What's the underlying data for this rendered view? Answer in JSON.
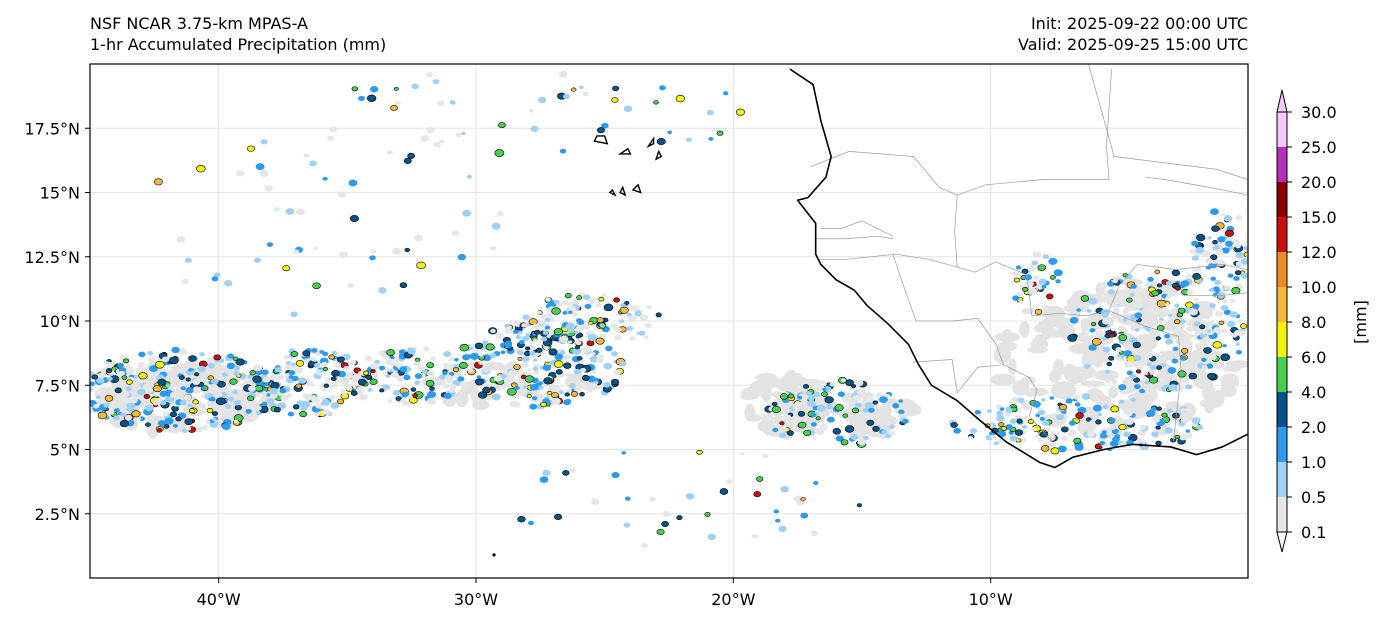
{
  "header": {
    "model": "NSF NCAR 3.75-km MPAS-A",
    "field": "1-hr Accumulated Precipitation (mm)",
    "init": "Init: 2025-09-22 00:00 UTC",
    "valid": "Valid: 2025-09-25 15:00 UTC"
  },
  "map": {
    "extent": {
      "lon_min": -45,
      "lon_max": 0,
      "lat_min": 0,
      "lat_max": 20
    },
    "lat_ticks": [
      {
        "value": 2.5,
        "label": "2.5°N"
      },
      {
        "value": 5,
        "label": "5°N"
      },
      {
        "value": 7.5,
        "label": "7.5°N"
      },
      {
        "value": 10,
        "label": "10°N"
      },
      {
        "value": 12.5,
        "label": "12.5°N"
      },
      {
        "value": 15,
        "label": "15°N"
      },
      {
        "value": 17.5,
        "label": "17.5°N"
      }
    ],
    "lon_ticks": [
      {
        "value": -40,
        "label": "40°W"
      },
      {
        "value": -30,
        "label": "30°W"
      },
      {
        "value": -20,
        "label": "20°W"
      },
      {
        "value": -10,
        "label": "10°W"
      }
    ],
    "colors": {
      "coast": "#000000",
      "border": "#9a9a9a",
      "grid": "#e4e4e4",
      "light_precip": "#e3e3e3"
    },
    "coastline": [
      [
        -17.8,
        19.8
      ],
      [
        -16.9,
        19.2
      ],
      [
        -16.6,
        17.8
      ],
      [
        -16.2,
        16.4
      ],
      [
        -16.4,
        15.6
      ],
      [
        -17.1,
        14.8
      ],
      [
        -17.5,
        14.7
      ],
      [
        -16.8,
        13.8
      ],
      [
        -16.8,
        12.6
      ],
      [
        -16.6,
        12.2
      ],
      [
        -16.0,
        11.6
      ],
      [
        -15.3,
        11.2
      ],
      [
        -14.8,
        10.6
      ],
      [
        -14.0,
        9.9
      ],
      [
        -13.2,
        9.1
      ],
      [
        -12.8,
        8.3
      ],
      [
        -12.3,
        7.5
      ],
      [
        -11.3,
        6.9
      ],
      [
        -10.5,
        6.2
      ],
      [
        -9.4,
        5.3
      ],
      [
        -8.1,
        4.5
      ],
      [
        -7.5,
        4.3
      ],
      [
        -6.8,
        4.7
      ],
      [
        -5.6,
        5.0
      ],
      [
        -4.5,
        5.2
      ],
      [
        -3.0,
        5.1
      ],
      [
        -2.0,
        4.8
      ],
      [
        -1.0,
        5.1
      ],
      [
        0.0,
        5.6
      ]
    ],
    "borders": [
      [
        [
          -17.0,
          16.0
        ],
        [
          -15.5,
          16.6
        ],
        [
          -13.0,
          16.4
        ],
        [
          -12.0,
          15.2
        ],
        [
          -11.3,
          14.9
        ]
      ],
      [
        [
          -16.7,
          12.4
        ],
        [
          -15.6,
          12.4
        ],
        [
          -13.7,
          12.6
        ],
        [
          -12.4,
          12.4
        ],
        [
          -11.3,
          12.1
        ]
      ],
      [
        [
          -16.6,
          13.6
        ],
        [
          -15.8,
          13.6
        ],
        [
          -15.0,
          13.9
        ],
        [
          -14.2,
          13.5
        ],
        [
          -13.8,
          13.3
        ]
      ],
      [
        [
          -16.8,
          13.2
        ],
        [
          -15.6,
          13.2
        ],
        [
          -14.4,
          13.3
        ],
        [
          -13.8,
          13.2
        ]
      ],
      [
        [
          -11.3,
          14.9
        ],
        [
          -11.4,
          13.5
        ],
        [
          -11.3,
          12.1
        ],
        [
          -10.6,
          11.9
        ],
        [
          -9.8,
          12.3
        ],
        [
          -8.6,
          11.8
        ],
        [
          -8.4,
          10.2
        ]
      ],
      [
        [
          -13.8,
          12.6
        ],
        [
          -13.4,
          11.4
        ],
        [
          -12.9,
          10.0
        ],
        [
          -11.5,
          10.0
        ],
        [
          -10.5,
          10.1
        ],
        [
          -9.8,
          9.1
        ],
        [
          -9.5,
          8.3
        ]
      ],
      [
        [
          -13.0,
          8.4
        ],
        [
          -11.5,
          8.5
        ],
        [
          -11.3,
          7.2
        ]
      ],
      [
        [
          -11.3,
          7.2
        ],
        [
          -10.5,
          8.2
        ],
        [
          -9.5,
          8.3
        ],
        [
          -8.5,
          7.8
        ],
        [
          -8.2,
          7.3
        ],
        [
          -8.5,
          6.3
        ],
        [
          -7.6,
          5.3
        ]
      ],
      [
        [
          -8.4,
          10.2
        ],
        [
          -7.3,
          10.3
        ],
        [
          -6.3,
          10.2
        ],
        [
          -5.4,
          10.4
        ],
        [
          -5.0,
          11.4
        ],
        [
          -4.3,
          12.2
        ],
        [
          -2.8,
          12.0
        ],
        [
          -1.0,
          12.2
        ],
        [
          0.0,
          12.0
        ]
      ],
      [
        [
          -5.4,
          10.4
        ],
        [
          -4.0,
          9.8
        ],
        [
          -2.7,
          9.4
        ],
        [
          -2.6,
          8.0
        ],
        [
          -2.9,
          5.3
        ]
      ],
      [
        [
          -2.5,
          11.0
        ],
        [
          -1.0,
          11.0
        ],
        [
          0.0,
          11.1
        ]
      ],
      [
        [
          0.0,
          14.9
        ],
        [
          -1.5,
          15.2
        ],
        [
          -3.2,
          15.5
        ],
        [
          -4.0,
          15.6
        ]
      ],
      [
        [
          -11.3,
          14.9
        ],
        [
          -10.2,
          15.3
        ],
        [
          -8.0,
          15.5
        ],
        [
          -5.4,
          15.5
        ],
        [
          -5.5,
          16.8
        ],
        [
          -5.3,
          19.8
        ]
      ],
      [
        [
          -6.2,
          20.0
        ],
        [
          -5.2,
          16.4
        ],
        [
          -1.2,
          15.9
        ],
        [
          0.0,
          15.5
        ]
      ]
    ],
    "islands": [
      [
        [
          -25.4,
          17.0
        ],
        [
          -24.9,
          16.9
        ],
        [
          -25.0,
          17.2
        ],
        [
          -25.3,
          17.2
        ],
        [
          -25.4,
          17.0
        ]
      ],
      [
        [
          -24.4,
          16.5
        ],
        [
          -24.0,
          16.5
        ],
        [
          -24.1,
          16.7
        ],
        [
          -24.4,
          16.5
        ]
      ],
      [
        [
          -23.0,
          16.3
        ],
        [
          -22.8,
          16.4
        ],
        [
          -22.9,
          16.6
        ],
        [
          -23.0,
          16.3
        ]
      ],
      [
        [
          -23.9,
          15.1
        ],
        [
          -23.6,
          15.0
        ],
        [
          -23.7,
          15.3
        ],
        [
          -23.9,
          15.1
        ]
      ],
      [
        [
          -24.8,
          15.0
        ],
        [
          -24.6,
          14.9
        ],
        [
          -24.7,
          15.1
        ],
        [
          -24.8,
          15.0
        ]
      ],
      [
        [
          -24.4,
          15.0
        ],
        [
          -24.2,
          14.9
        ],
        [
          -24.3,
          15.2
        ],
        [
          -24.4,
          15.0
        ]
      ],
      [
        [
          -23.3,
          16.8
        ],
        [
          -23.1,
          16.9
        ],
        [
          -23.1,
          17.1
        ],
        [
          -23.3,
          16.8
        ]
      ]
    ],
    "extra_island_points": [
      [
        -29.3,
        0.9
      ]
    ],
    "precip_regions": [
      {
        "lon": -41.5,
        "lat": 7.3,
        "rlon": 3.9,
        "rlat": 1.6,
        "n": 320,
        "seed": 11
      },
      {
        "lon": -36.5,
        "lat": 7.6,
        "rlon": 2.4,
        "rlat": 1.3,
        "n": 150,
        "seed": 12
      },
      {
        "lon": -32.5,
        "lat": 7.9,
        "rlon": 2.0,
        "rlat": 1.2,
        "n": 110,
        "seed": 13
      },
      {
        "lon": -27.5,
        "lat": 8.3,
        "rlon": 3.3,
        "rlat": 1.7,
        "n": 260,
        "seed": 14
      },
      {
        "lon": -25.5,
        "lat": 10.0,
        "rlon": 2.7,
        "rlat": 1.1,
        "n": 110,
        "seed": 15
      },
      {
        "lon": -16.0,
        "lat": 6.4,
        "rlon": 2.8,
        "rlat": 1.3,
        "n": 140,
        "seed": 16
      },
      {
        "lon": -6.5,
        "lat": 6.0,
        "rlon": 5.0,
        "rlat": 1.1,
        "n": 200,
        "seed": 17
      },
      {
        "lon": -3.5,
        "lat": 9.6,
        "rlon": 3.4,
        "rlat": 2.4,
        "n": 280,
        "seed": 18
      },
      {
        "lon": -1.0,
        "lat": 12.7,
        "rlon": 1.2,
        "rlat": 1.8,
        "n": 80,
        "seed": 19
      },
      {
        "lon": -8.2,
        "lat": 11.5,
        "rlon": 1.0,
        "rlat": 1.2,
        "n": 40,
        "seed": 20
      },
      {
        "lon": -28.0,
        "lat": 18.0,
        "rlon": 9.0,
        "rlat": 1.8,
        "n": 50,
        "seed": 21
      },
      {
        "lon": -36.0,
        "lat": 14.0,
        "rlon": 7.0,
        "rlat": 4.0,
        "n": 50,
        "seed": 22
      },
      {
        "lon": -22.0,
        "lat": 3.0,
        "rlon": 7.0,
        "rlat": 2.0,
        "n": 40,
        "seed": 23
      }
    ],
    "gray_patches": [
      {
        "lon": -41.5,
        "lat": 7.0,
        "rlon": 3.6,
        "rlat": 1.3,
        "n": 90,
        "seed": 31
      },
      {
        "lon": -18.0,
        "lat": 6.8,
        "rlon": 1.6,
        "rlat": 1.2,
        "n": 60,
        "seed": 32
      },
      {
        "lon": -14.5,
        "lat": 6.4,
        "rlon": 1.6,
        "rlat": 0.8,
        "n": 30,
        "seed": 33
      },
      {
        "lon": -5.0,
        "lat": 8.6,
        "rlon": 4.8,
        "rlat": 3.0,
        "n": 160,
        "seed": 34
      },
      {
        "lon": -30.5,
        "lat": 7.5,
        "rlon": 5.0,
        "rlat": 0.8,
        "n": 30,
        "seed": 35
      }
    ]
  },
  "colorbar": {
    "unit_label": "[mm]",
    "bounds": [
      0.1,
      0.5,
      1.0,
      2.0,
      4.0,
      6.0,
      8.0,
      10.0,
      12.0,
      15.0,
      20.0,
      25.0,
      30.0
    ],
    "tick_labels": [
      "0.1",
      "0.5",
      "1.0",
      "2.0",
      "4.0",
      "6.0",
      "8.0",
      "10.0",
      "12.0",
      "15.0",
      "20.0",
      "25.0",
      "30.0"
    ],
    "colors": [
      "#e6e6e6",
      "#9fd0f7",
      "#2b9af0",
      "#075387",
      "#47cf4f",
      "#f2f20a",
      "#f5b73c",
      "#eb8c28",
      "#c91010",
      "#8b0000",
      "#b52fb8",
      "#f8c6f8"
    ],
    "under_color": "#ffffff",
    "over_color": "#f8c6f8"
  }
}
